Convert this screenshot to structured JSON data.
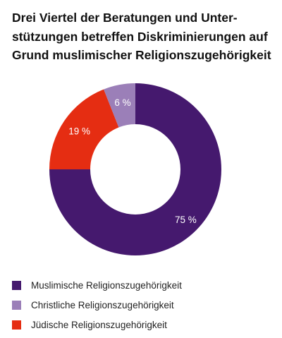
{
  "chart_data": {
    "type": "pie",
    "title_lines": [
      "Drei Viertel der Beratungen und Unter-",
      "stützungen betreffen Diskriminierungen auf",
      "Grund muslimischer Religionszugehörigkeit"
    ],
    "categories": [
      "Muslimische Religionszugehörigkeit",
      "Christliche Religionszugehörigkeit",
      "Jüdische Religionszugehörigkeit"
    ],
    "values": [
      75,
      6,
      19
    ],
    "value_labels": [
      "75 %",
      "6 %",
      "19 %"
    ],
    "unit": "%",
    "colors": [
      "#45196e",
      "#9b7fb8",
      "#e52d12"
    ],
    "donut": true,
    "legend_position": "bottom-left"
  }
}
